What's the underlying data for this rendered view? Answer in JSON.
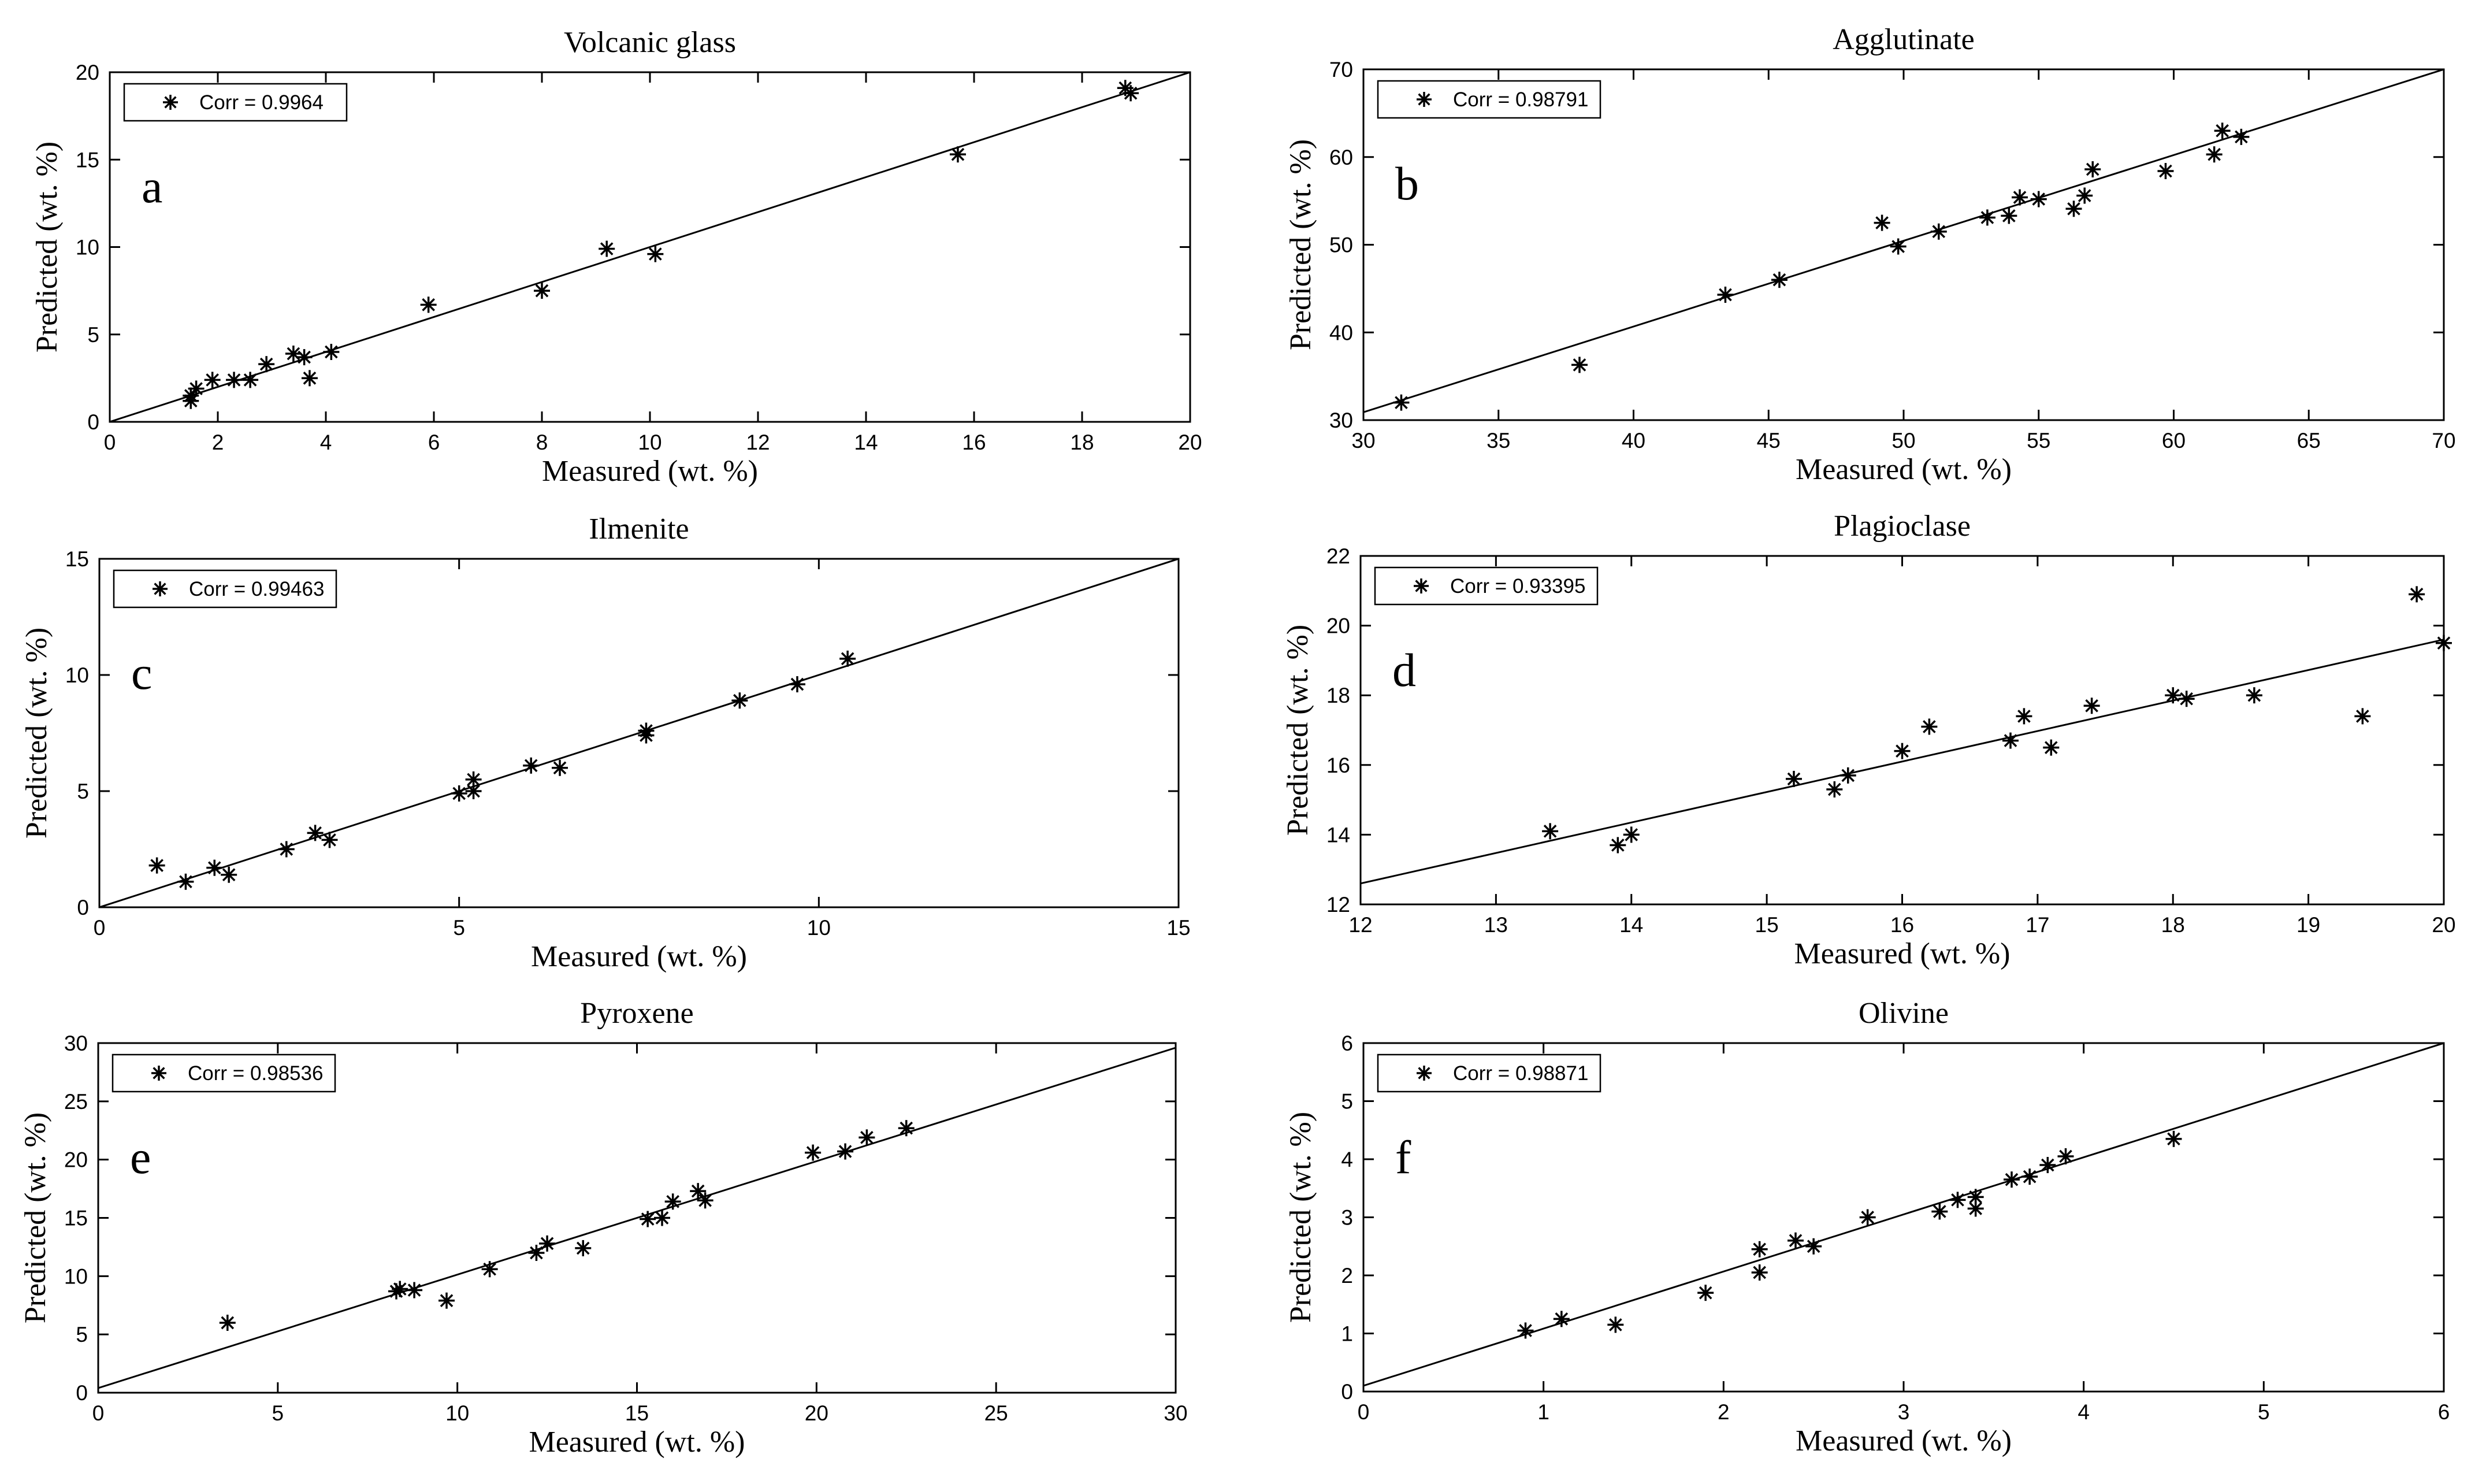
{
  "colors": {
    "axis": "#000000",
    "marker": "#000000",
    "fit_line": "#000000",
    "background": "#ffffff"
  },
  "chart_data": [
    {
      "type": "scatter",
      "title": "Volcanic glass",
      "panel_letter": "a",
      "xlabel": "Measured (wt. %)",
      "ylabel": "Predicted (wt. %)",
      "xlim": [
        0,
        20
      ],
      "ylim": [
        0,
        20
      ],
      "xticks": [
        0,
        2,
        4,
        6,
        8,
        10,
        12,
        14,
        16,
        18,
        20
      ],
      "yticks": [
        0,
        5,
        10,
        15,
        20
      ],
      "legend": "Corr = 0.9964",
      "legend_position": "top-left",
      "fit_line": [
        [
          0,
          0
        ],
        [
          20,
          20
        ]
      ],
      "points": [
        [
          1.5,
          1.2
        ],
        [
          1.5,
          1.5
        ],
        [
          1.6,
          1.9
        ],
        [
          1.9,
          2.4
        ],
        [
          2.3,
          2.4
        ],
        [
          2.6,
          2.4
        ],
        [
          2.9,
          3.3
        ],
        [
          3.4,
          3.9
        ],
        [
          3.6,
          3.7
        ],
        [
          3.7,
          2.5
        ],
        [
          4.1,
          4.0
        ],
        [
          5.9,
          6.7
        ],
        [
          8.0,
          7.5
        ],
        [
          9.2,
          9.9
        ],
        [
          10.1,
          9.6
        ],
        [
          15.7,
          15.3
        ],
        [
          18.8,
          19.1
        ],
        [
          18.9,
          18.8
        ]
      ]
    },
    {
      "type": "scatter",
      "title": "Agglutinate",
      "panel_letter": "b",
      "xlabel": "Measured (wt. %)",
      "ylabel": "Predicted (wt. %)",
      "xlim": [
        30,
        70
      ],
      "ylim": [
        30,
        70
      ],
      "xticks": [
        30,
        35,
        40,
        45,
        50,
        55,
        60,
        65,
        70
      ],
      "yticks": [
        30,
        40,
        50,
        60,
        70
      ],
      "legend": "Corr = 0.98791",
      "legend_position": "top-left",
      "fit_line": [
        [
          30,
          30.9
        ],
        [
          70,
          70
        ]
      ],
      "points": [
        [
          31.4,
          32.0
        ],
        [
          38.0,
          36.3
        ],
        [
          43.4,
          44.3
        ],
        [
          45.4,
          46.0
        ],
        [
          49.2,
          52.5
        ],
        [
          49.8,
          49.8
        ],
        [
          51.3,
          51.5
        ],
        [
          53.1,
          53.1
        ],
        [
          53.9,
          53.3
        ],
        [
          54.3,
          55.4
        ],
        [
          55.0,
          55.2
        ],
        [
          56.3,
          54.1
        ],
        [
          56.7,
          55.6
        ],
        [
          57.0,
          58.6
        ],
        [
          59.7,
          58.4
        ],
        [
          61.5,
          60.3
        ],
        [
          61.8,
          63.0
        ],
        [
          62.5,
          62.3
        ]
      ]
    },
    {
      "type": "scatter",
      "title": "Ilmenite",
      "panel_letter": "c",
      "xlabel": "Measured (wt. %)",
      "ylabel": "Predicted (wt. %)",
      "xlim": [
        0,
        15
      ],
      "ylim": [
        0,
        15
      ],
      "xticks": [
        0,
        5,
        10,
        15
      ],
      "yticks": [
        0,
        5,
        10,
        15
      ],
      "legend": "Corr = 0.99463",
      "legend_position": "top-left",
      "fit_line": [
        [
          0,
          0
        ],
        [
          15,
          15
        ]
      ],
      "points": [
        [
          0.8,
          1.8
        ],
        [
          1.2,
          1.1
        ],
        [
          1.6,
          1.7
        ],
        [
          1.8,
          1.4
        ],
        [
          2.6,
          2.5
        ],
        [
          3.0,
          3.2
        ],
        [
          3.2,
          2.9
        ],
        [
          5.0,
          4.9
        ],
        [
          5.2,
          5.0
        ],
        [
          5.2,
          5.5
        ],
        [
          6.0,
          6.1
        ],
        [
          6.4,
          6.0
        ],
        [
          7.6,
          7.4
        ],
        [
          7.6,
          7.6
        ],
        [
          8.9,
          8.9
        ],
        [
          9.7,
          9.6
        ],
        [
          10.4,
          10.7
        ]
      ]
    },
    {
      "type": "scatter",
      "title": "Plagioclase",
      "panel_letter": "d",
      "xlabel": "Measured (wt. %)",
      "ylabel": "Predicted (wt. %)",
      "xlim": [
        12,
        20
      ],
      "ylim": [
        12,
        22
      ],
      "xticks": [
        12,
        13,
        14,
        15,
        16,
        17,
        18,
        19,
        20
      ],
      "yticks": [
        12,
        14,
        16,
        18,
        20,
        22
      ],
      "legend": "Corr = 0.93395",
      "legend_position": "top-left",
      "fit_line": [
        [
          12,
          12.6
        ],
        [
          20,
          19.6
        ]
      ],
      "points": [
        [
          13.4,
          14.1
        ],
        [
          13.9,
          13.7
        ],
        [
          14.0,
          14.0
        ],
        [
          15.2,
          15.6
        ],
        [
          15.5,
          15.3
        ],
        [
          15.6,
          15.7
        ],
        [
          16.0,
          16.4
        ],
        [
          16.2,
          17.1
        ],
        [
          16.8,
          16.7
        ],
        [
          16.9,
          17.4
        ],
        [
          17.1,
          16.5
        ],
        [
          17.4,
          17.7
        ],
        [
          18.0,
          18.0
        ],
        [
          18.1,
          17.9
        ],
        [
          18.6,
          18.0
        ],
        [
          19.4,
          17.4
        ],
        [
          19.8,
          20.9
        ],
        [
          20.0,
          19.5
        ]
      ]
    },
    {
      "type": "scatter",
      "title": "Pyroxene",
      "panel_letter": "e",
      "xlabel": "Measured (wt. %)",
      "ylabel": "Predicted (wt. %)",
      "xlim": [
        0,
        30
      ],
      "ylim": [
        0,
        30
      ],
      "xticks": [
        0,
        5,
        10,
        15,
        20,
        25,
        30
      ],
      "yticks": [
        0,
        5,
        10,
        15,
        20,
        25,
        30
      ],
      "legend": "Corr = 0.98536",
      "legend_position": "top-left",
      "fit_line": [
        [
          0,
          0.4
        ],
        [
          30,
          29.6
        ]
      ],
      "points": [
        [
          3.6,
          6.0
        ],
        [
          8.3,
          8.7
        ],
        [
          8.4,
          8.9
        ],
        [
          8.8,
          8.8
        ],
        [
          9.7,
          7.9
        ],
        [
          10.9,
          10.6
        ],
        [
          12.2,
          12.0
        ],
        [
          12.5,
          12.8
        ],
        [
          13.5,
          12.4
        ],
        [
          15.3,
          14.9
        ],
        [
          15.7,
          15.0
        ],
        [
          16.0,
          16.4
        ],
        [
          16.7,
          17.3
        ],
        [
          16.9,
          16.5
        ],
        [
          19.9,
          20.6
        ],
        [
          20.8,
          20.7
        ],
        [
          21.4,
          21.9
        ],
        [
          22.5,
          22.7
        ]
      ]
    },
    {
      "type": "scatter",
      "title": "Olivine",
      "panel_letter": "f",
      "xlabel": "Measured (wt. %)",
      "ylabel": "Predicted (wt. %)",
      "xlim": [
        0,
        6
      ],
      "ylim": [
        0,
        6
      ],
      "xticks": [
        0,
        1,
        2,
        3,
        4,
        5,
        6
      ],
      "yticks": [
        0,
        1,
        2,
        3,
        4,
        5,
        6
      ],
      "legend": "Corr = 0.98871",
      "legend_position": "top-left",
      "fit_line": [
        [
          0,
          0.1
        ],
        [
          6,
          6
        ]
      ],
      "points": [
        [
          0.9,
          1.05
        ],
        [
          1.1,
          1.25
        ],
        [
          1.4,
          1.15
        ],
        [
          1.9,
          1.7
        ],
        [
          2.2,
          2.05
        ],
        [
          2.2,
          2.45
        ],
        [
          2.4,
          2.6
        ],
        [
          2.5,
          2.5
        ],
        [
          2.8,
          3.0
        ],
        [
          3.2,
          3.1
        ],
        [
          3.3,
          3.3
        ],
        [
          3.4,
          3.15
        ],
        [
          3.4,
          3.35
        ],
        [
          3.6,
          3.65
        ],
        [
          3.7,
          3.7
        ],
        [
          3.8,
          3.9
        ],
        [
          3.9,
          4.05
        ],
        [
          4.5,
          4.35
        ]
      ]
    }
  ]
}
